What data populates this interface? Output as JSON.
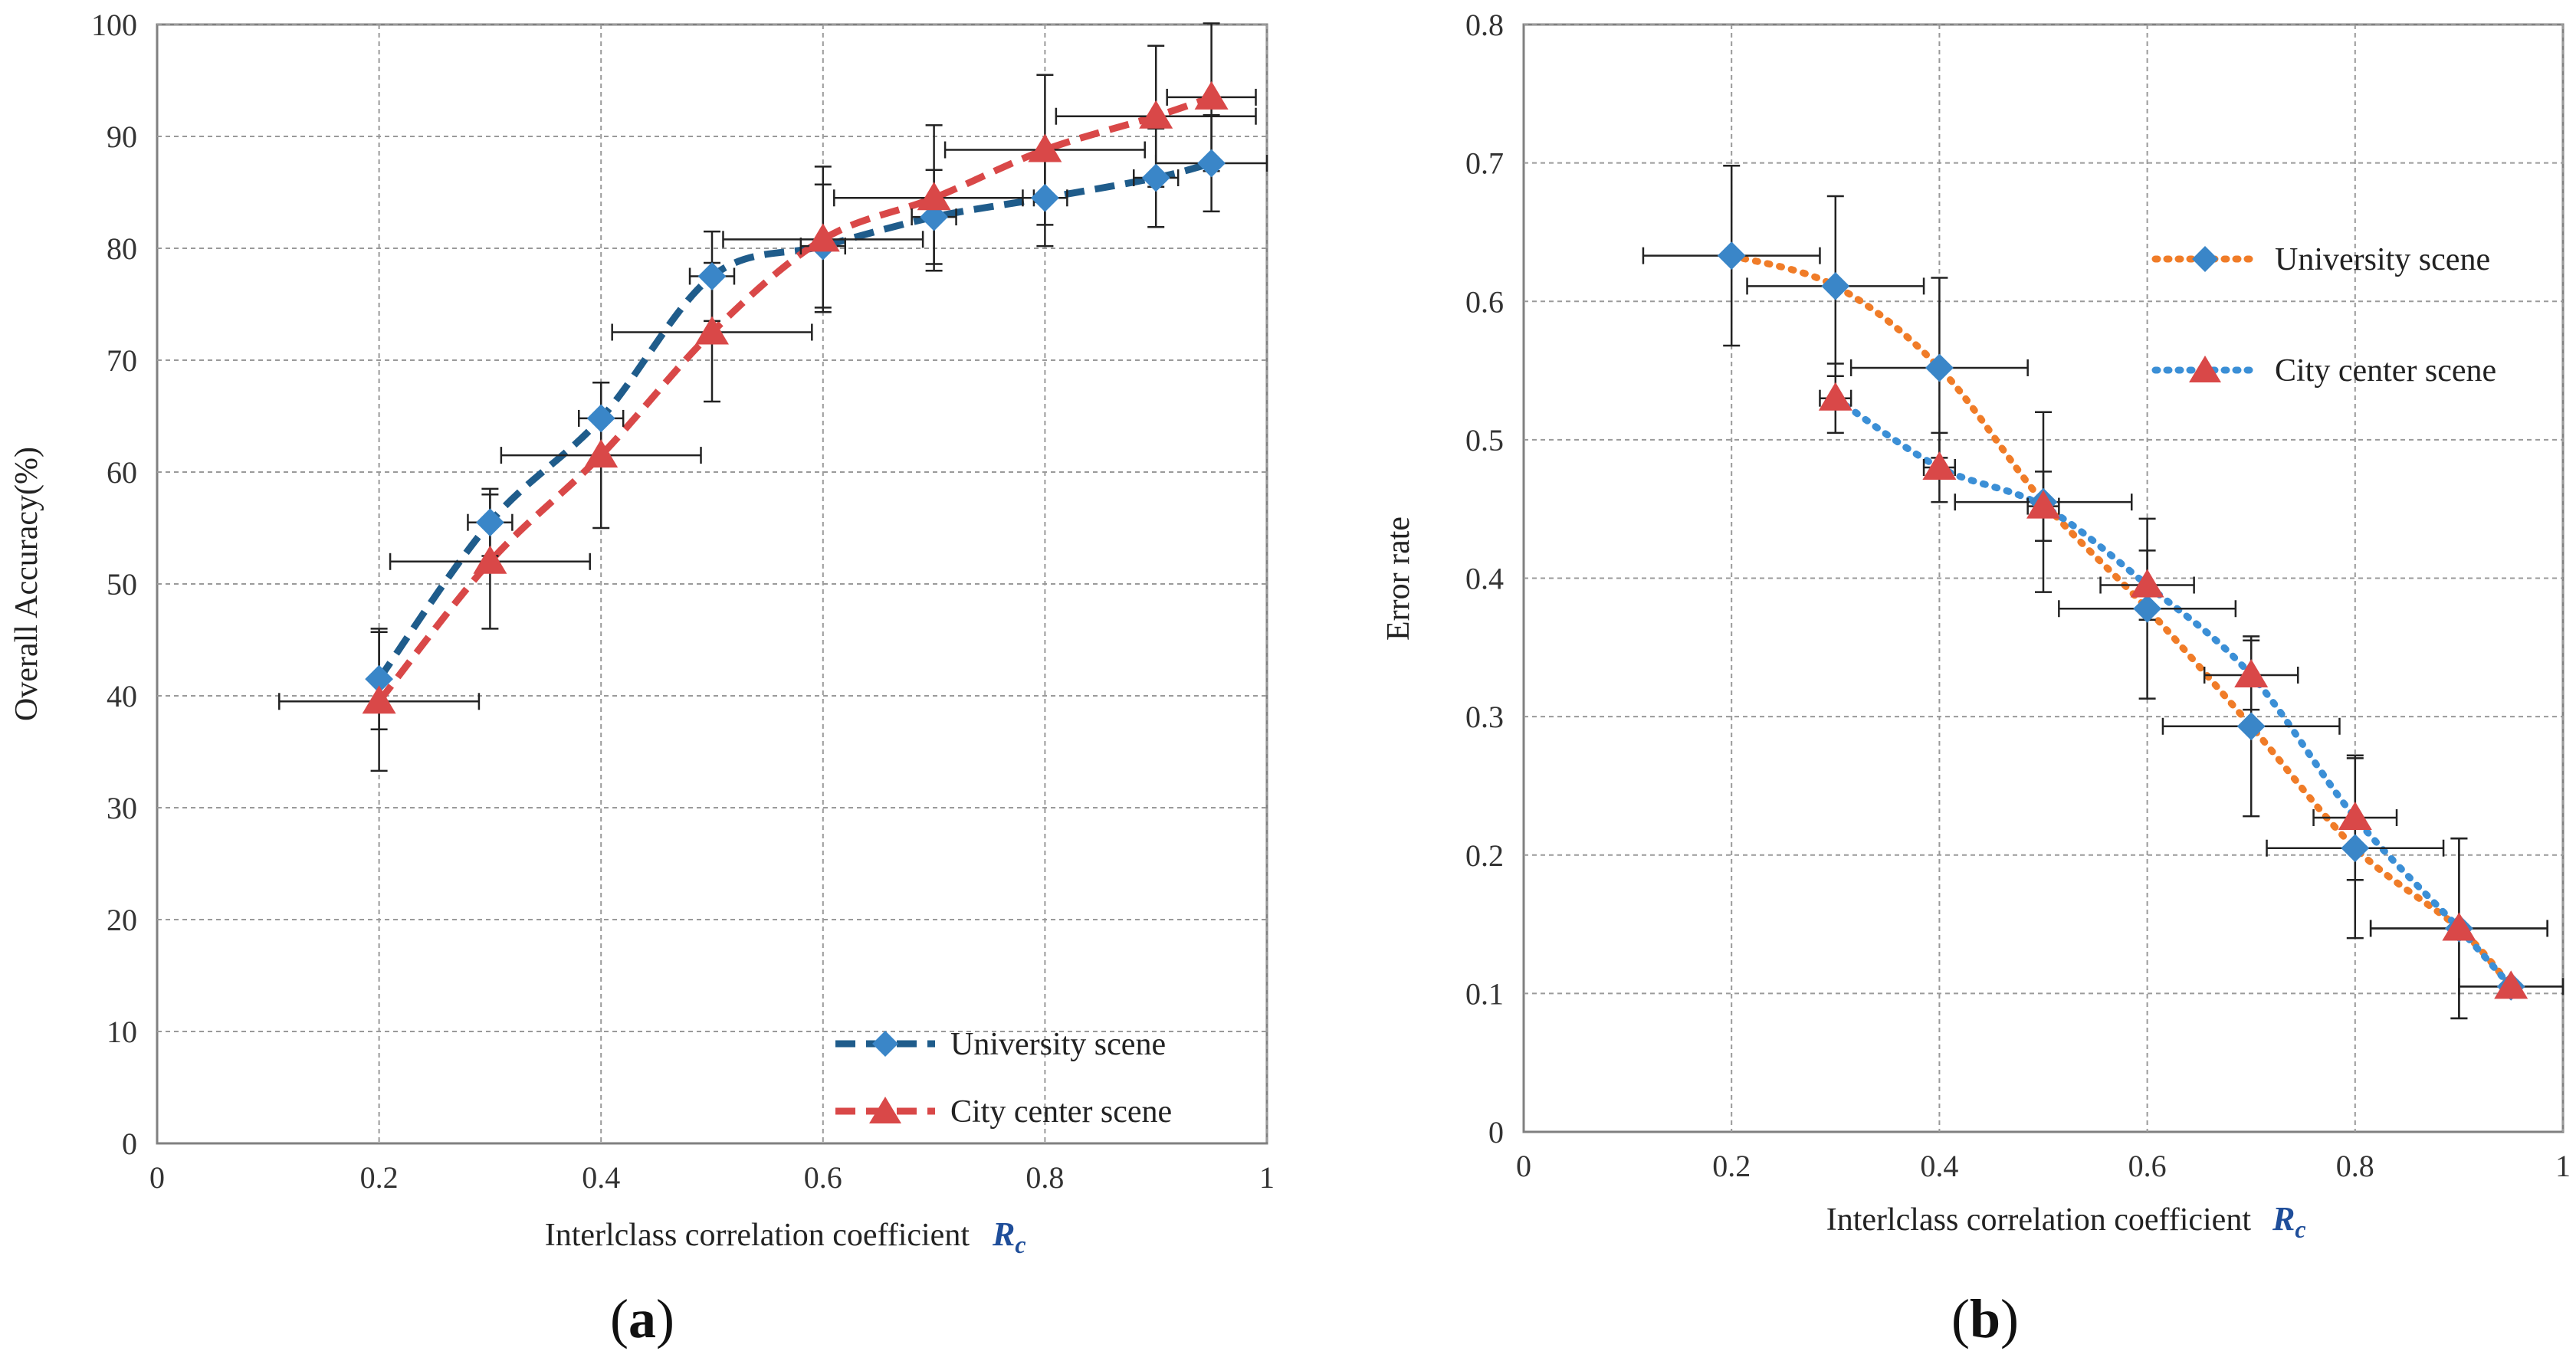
{
  "chart_data": [
    {
      "type": "line",
      "panel_label": "a",
      "title": "",
      "xlabel": "Interlclass correlation coefficient",
      "xlabel_symbol": "R",
      "xlabel_symbol_sub": "c",
      "ylabel": "Overall Accuracy(%)",
      "xlim": [
        0,
        1
      ],
      "ylim": [
        0,
        100
      ],
      "xticks": [
        0,
        0.2,
        0.4,
        0.6,
        0.8,
        1
      ],
      "xtick_labels": [
        "0",
        "0.2",
        "0.4",
        "0.6",
        "0.8",
        "1"
      ],
      "yticks": [
        0,
        10,
        20,
        30,
        40,
        50,
        60,
        70,
        80,
        90,
        100
      ],
      "ytick_labels": [
        "0",
        "10",
        "20",
        "30",
        "40",
        "50",
        "60",
        "70",
        "80",
        "90",
        "100"
      ],
      "grid": true,
      "legend_position": "bottom-right",
      "series": [
        {
          "name": "University scene",
          "color": "#1f5c8b",
          "line_style": "dashed",
          "marker": "diamond",
          "marker_color": "#3a86c8",
          "x": [
            0.2,
            0.3,
            0.4,
            0.5,
            0.6,
            0.7,
            0.8,
            0.9,
            0.95
          ],
          "y": [
            41.5,
            55.5,
            64.8,
            77.5,
            80.2,
            82.8,
            84.5,
            86.3,
            87.6
          ],
          "yerr": [
            4.5,
            3.0,
            3.2,
            4.0,
            5.5,
            4.2,
            4.3,
            4.4,
            4.3
          ],
          "xerr": [
            0,
            0.02,
            0.02,
            0.02,
            0.02,
            0.02,
            0.02,
            0.02,
            0.05
          ]
        },
        {
          "name": "City center scene",
          "color": "#d94848",
          "line_style": "dashed",
          "marker": "triangle",
          "marker_color": "#d94848",
          "x": [
            0.2,
            0.3,
            0.4,
            0.5,
            0.6,
            0.7,
            0.8,
            0.9,
            0.95
          ],
          "y": [
            39.5,
            52.0,
            61.5,
            72.5,
            80.8,
            84.5,
            88.8,
            91.8,
            93.5
          ],
          "yerr": [
            6.2,
            6.0,
            6.5,
            6.2,
            6.5,
            6.5,
            6.7,
            6.3,
            6.6
          ],
          "xerr": [
            0.09,
            0.09,
            0.09,
            0.09,
            0.09,
            0.09,
            0.09,
            0.09,
            0.04
          ]
        }
      ]
    },
    {
      "type": "line",
      "panel_label": "b",
      "title": "",
      "xlabel": "Interlclass correlation coefficient",
      "xlabel_symbol": "R",
      "xlabel_symbol_sub": "c",
      "ylabel": "Error  rate",
      "xlim": [
        0,
        1
      ],
      "ylim": [
        0,
        0.8
      ],
      "xticks": [
        0,
        0.2,
        0.4,
        0.6,
        0.8,
        1
      ],
      "xtick_labels": [
        "0",
        "0.2",
        "0.4",
        "0.6",
        "0.8",
        "1"
      ],
      "yticks": [
        0,
        0.1,
        0.2,
        0.3,
        0.4,
        0.5,
        0.6,
        0.7,
        0.8
      ],
      "ytick_labels": [
        "0",
        "0.1",
        "0.2",
        "0.3",
        "0.4",
        "0.5",
        "0.6",
        "0.7",
        "0.8"
      ],
      "grid": true,
      "legend_position": "top-right",
      "series": [
        {
          "name": "University scene",
          "color": "#f07c28",
          "line_style": "dotted",
          "marker": "diamond",
          "marker_color": "#3a86c8",
          "x": [
            0.2,
            0.3,
            0.4,
            0.5,
            0.6,
            0.7,
            0.8,
            0.9,
            0.95
          ],
          "y": [
            0.633,
            0.611,
            0.552,
            0.455,
            0.378,
            0.293,
            0.205,
            0.147,
            0.105
          ],
          "yerr": [
            0.065,
            0.065,
            0.065,
            0.065,
            0.065,
            0.065,
            0.065,
            0.065,
            0
          ],
          "xerr": [
            0.085,
            0.085,
            0.085,
            0.085,
            0.085,
            0.085,
            0.085,
            0.085,
            0.05
          ]
        },
        {
          "name": "City center scene",
          "color": "#3b8fd6",
          "line_style": "dotted",
          "marker": "triangle",
          "marker_color": "#d94848",
          "x": [
            0.3,
            0.4,
            0.5,
            0.6,
            0.7,
            0.8,
            0.9,
            0.95
          ],
          "y": [
            0.53,
            0.48,
            0.452,
            0.395,
            0.33,
            0.227,
            0.147,
            0.105
          ],
          "yerr": [
            0.025,
            0.025,
            0.025,
            0.025,
            0.025,
            0.045,
            0.065,
            0
          ],
          "xerr": [
            0.015,
            0.015,
            0.015,
            0.045,
            0.045,
            0.04,
            0.085,
            0.05
          ]
        }
      ]
    }
  ]
}
